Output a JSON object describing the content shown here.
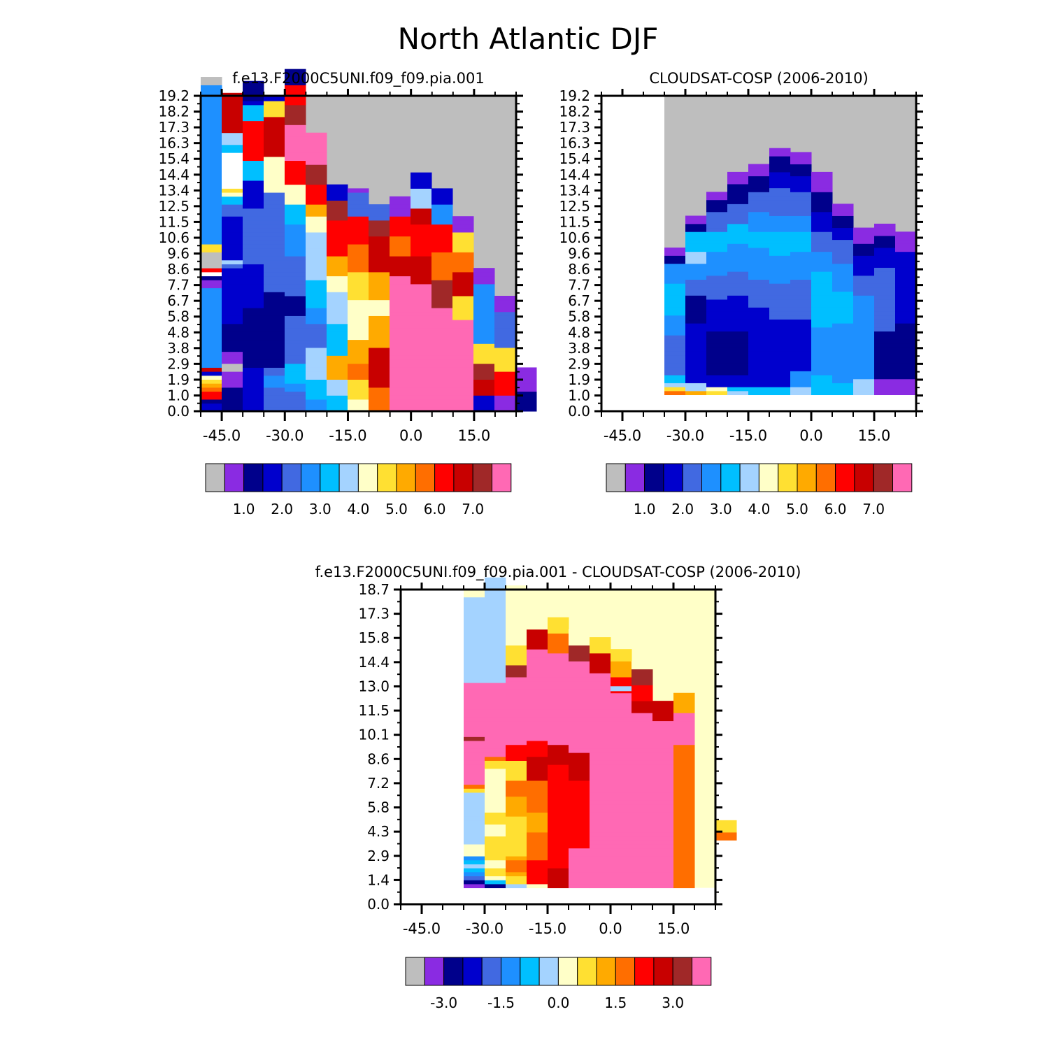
{
  "figure_title": "North Atlantic DJF",
  "colors": {
    "palette_abs": [
      "#bebebe",
      "#8a2be2",
      "#00008b",
      "#0000cd",
      "#4169e1",
      "#1e90ff",
      "#00bfff",
      "#a4d3ff",
      "#ffffc8",
      "#ffe032",
      "#ffaa00",
      "#ff6e00",
      "#ff0000",
      "#c80000",
      "#a02828",
      "#ff69b4"
    ],
    "palette_diff": [
      "#bebebe",
      "#8a2be2",
      "#00008b",
      "#0000cd",
      "#4169e1",
      "#1e90ff",
      "#00bfff",
      "#a4d3ff",
      "#ffffc8",
      "#ffe032",
      "#ffaa00",
      "#ff6e00",
      "#ff0000",
      "#c80000",
      "#a02828",
      "#ff69b4"
    ],
    "missing": "#bebebe"
  },
  "chart_data": [
    {
      "id": "model",
      "type": "heatmap",
      "title": "f.e13.F2000C5UNI.f09_f09.pia.001",
      "x_ticks": [
        "-45.0",
        "-30.0",
        "-15.0",
        "0.0",
        "15.0"
      ],
      "x_tick_values": [
        -45,
        -30,
        -15,
        0,
        15
      ],
      "xlim": [
        -50,
        25
      ],
      "y_ticks": [
        "0.0",
        "1.0",
        "1.9",
        "2.9",
        "3.8",
        "4.8",
        "5.8",
        "6.7",
        "7.7",
        "8.6",
        "9.6",
        "10.6",
        "11.5",
        "12.5",
        "13.4",
        "14.4",
        "15.4",
        "16.3",
        "17.3",
        "18.2",
        "19.2"
      ],
      "background": "#bebebe",
      "columns": [
        {
          "start": 0,
          "cells": "DDCMMLKJIDNFFFFFFFFFFFFFFFFFFFFBBCRMAAAAJJFFFFFFFFFFFFFFFFFFFFFFFFFFFFFFFFFFFFFFFFAA"
        },
        {
          "start": 0,
          "cells": "CCCCCCBBBBAABBBCCCCCCCDDDDDDDDDDDDDDEHDDDDDDDDDDDEEEGGIJRRRRRRRRRGGHHHNNNNNNNNNN"
        },
        {
          "start": 0,
          "cells": "DDDDDDDDDDDCCCCCCCCCCCCCCCDDDDDDDDDDDEEEEEEEEEEEEEEDDDDDDDGGGGGMMMMMMMMMMGGGGDCCCCC"
        },
        {
          "start": 0,
          "cells": "EEEEEEFFFEECCCCCCCCCCCCCCCCCCCEEEEEEEEEEEEEEEEEEEEEEEEEIIIIIIIIINNNNNNNNNNJJJJD"
        },
        {
          "start": 0,
          "cells": "EEEEEFFGGGGGEEEEEEEEEEEECCCCCEEEEEEEEEEFFFFFFFFGGGGGIIIIIMMMMMMPPPPPPPPPOOOOOMMMMMCCCC"
        },
        {
          "start": 0,
          "cells": "FFFGGGGGHHHHHHHHEEEEEEFFFFGGGGGGGHHHHHHHHHHHHIIIIKKKMMMMMOOOOOPPPPPPPP"
        },
        {
          "start": 0,
          "cells": "GGGGHHHHKKKKKKGGGGGGGGHHHHHHHHIIIIKKKKKMMMMMMMMMOOOOODDDD"
        },
        {
          "start": 0,
          "cells": "IIIJJJJJLLLLKKKKKKIIIIIIIIIIJJJJJJJLLLLLLLMMMMMMMEEEEEEB"
        },
        {
          "start": 0,
          "cells": "LLLLLLNNNNNNNNNNKKKKKKKKIIIIKKKKKKKNNNNNNNNNOOOOEEEE"
        },
        {
          "start": 0,
          "cells": "PPPPPPPPPPPPPPPPPPPPPPPPPPPPPPPPPPNNNNNLLLLLMMMMMBBBBB"
        },
        {
          "start": 0,
          "cells": "PPPPPPPPPPPPPPPPPPPPPPPPPPPPPPPPNNNNNNNMMMMMMMMNNNNHHHHHDDDD"
        },
        {
          "start": 0,
          "cells": "PPPPPPPPPPPPPPPPPPPPPPPPPPOOOOOOOLLLLLLLMMMMMMMFFFFFDDDD"
        },
        {
          "start": 0,
          "cells": "PPPPPPPPPPPPPPPPPPPPPPPJJJJJJNNNNNNLLLLLJJJJJBBBB"
        },
        {
          "start": 0,
          "cells": "DDDDNNNNOOOOJJJJJFFFFFFFFFFFFFFFBBBB"
        },
        {
          "start": 0,
          "cells": "BBBBMMMMMMJJJJJJEEEEEEEEEBBBB"
        },
        {
          "start": 0,
          "cells": "CCCCCBBBBBB"
        }
      ]
    },
    {
      "id": "obs",
      "type": "heatmap",
      "title": "CLOUDSAT-COSP (2006-2010)",
      "x_ticks": [
        "-45.0",
        "-30.0",
        "-15.0",
        "0.0",
        "15.0"
      ],
      "x_tick_values": [
        -45,
        -30,
        -15,
        0,
        15
      ],
      "xlim": [
        -50,
        25
      ],
      "y_ticks": [
        "0.0",
        "1.0",
        "1.9",
        "2.9",
        "3.8",
        "4.8",
        "5.8",
        "6.7",
        "7.7",
        "8.6",
        "9.6",
        "10.6",
        "11.5",
        "12.5",
        "13.4",
        "14.4",
        "15.4",
        "16.3",
        "17.3",
        "18.2",
        "19.2"
      ],
      "background": "#bebebe",
      "data_xmin": -35,
      "missing_below": 1.0,
      "columns": [
        {
          "start": 1,
          "cells": "LJHGGEEEEEEEEEEFFFFFGGGGGGGGFFFFFCCBB"
        },
        {
          "start": 1,
          "cells": "KHHDDDDDDDDDDDDDDDCCCCCCCEEEEFFFFHHHGGGGGCCBB"
        },
        {
          "start": 1,
          "cells": "JIDDDCCCCCCCCCCCDDDDDDDDEEEEEEFFFFFFGGGGGEEEEECCCBB"
        },
        {
          "start": 1,
          "cells": "HGDDDCCCCCCCCCCCDDDDDDDDDEEEEEEFFFFFFFGGGGGEEEEECCCCCBBB"
        },
        {
          "start": 1,
          "cells": "GGDDDDDDDDDDDDDDDDDDDDEEEEEEEFFFFFFFFGGGGFFFFFEEEEECCCCBBB"
        },
        {
          "start": 1,
          "cells": "GGDDDDDDDDDDDDDDDDDEEEEEEEEEFFFFFFFGGGGGGFFFFEEEEEEEDDDDCCCCBB"
        },
        {
          "start": 1,
          "cells": "HHFFFFDDDDDDDDDDDDDEEEEEEEEEEFFFFFFFGGGGGFFFFEEEEEEDDDDCCCBBB"
        },
        {
          "start": 1,
          "cells": "GGGGGFFFFFFFFFFFFGGGGGGGGGGGGGGFFFFFEEEEEDDDDDCCCCCBBBBB"
        },
        {
          "start": 1,
          "cells": "GGGFFFFFFFFFFFFFFFGGGGGGGGFFFFFFFEEEEEEDDDCCCBBB"
        },
        {
          "start": 1,
          "cells": "HHHHFFFFFFFFFFFFFFFFFFFFFEEEEEDDDDDCCCBBBB"
        },
        {
          "start": 1,
          "cells": "BBBBCCCCCCCCCCCCEEEEEEEEEEEEEEEEDDDDDCCCBBB"
        },
        {
          "start": 1,
          "cells": "BBBBCCCCCCCCCCCCCCDDDDDDDDDDDDDDDDDDBBBBB"
        }
      ]
    },
    {
      "id": "diff",
      "type": "heatmap",
      "title": "f.e13.F2000C5UNI.f09_f09.pia.001 - CLOUDSAT-COSP (2006-2010)",
      "x_ticks": [
        "-45.0",
        "-30.0",
        "-15.0",
        "0.0",
        "15.0"
      ],
      "x_tick_values": [
        -45,
        -30,
        -15,
        0,
        15
      ],
      "xlim": [
        -50,
        25
      ],
      "y_ticks": [
        "0.0",
        "1.4",
        "2.9",
        "4.3",
        "5.8",
        "7.2",
        "8.6",
        "10.1",
        "11.5",
        "13.0",
        "14.4",
        "15.8",
        "17.3",
        "18.7"
      ],
      "background": "#ffffc8",
      "data_xmin": -35,
      "missing_below": 1.0,
      "columns": [
        {
          "start": 1,
          "cells": "BCEFGHGFIIIHHHHHHHHHHHHHJLPPPPPPPPPPPOPPPPPPPPPPPPPPPPIIIIIHHHHHHHHHHHHHH"
        },
        {
          "start": 1,
          "cells": "CGIJJIIJJJJJJIIIJJJIIIIIIIIIIIJJLPPPPPPPPPPPPPPPPPPPPPPNNNNNNIIIIIHHHHHHHHHHHH"
        },
        {
          "start": 1,
          "cells": "HJJKLLLKJJJJJJJJJJKKKKKLLLLJJJJJMMMMPPPPPPPPPPPPPPPPPOOOJJJJJIIIIIIIIIIIIIII"
        },
        {
          "start": 1,
          "cells": "IMMMMMMLLLLLLLKKKKKLLLLLLLLNNNNNNMMMMPPPPPPPPPPPPPPPPPPPPPPPNNNNNIIIII"
        },
        {
          "start": 1,
          "cells": "NNNNNMMMMMMMMMMMMMMMMMMMMMMMMMMNNNNNPPPPPPPPPPPPPPPPPPPPPPPLLLLLJJJJ"
        },
        {
          "start": 1,
          "cells": "PPPPPPPPPPMMMMMMMMMMMMMMMMMNNNNNNNPPPPPPPPPPPPPPPPPPPPPPPOOOOIIII"
        },
        {
          "start": 1,
          "cells": "PPPPPPPPPPPPPPPPPPPPPPPPPPPPPPPPPPPPPPPPPPPPPPPPPPPPPPNNNNNJJJJ"
        },
        {
          "start": 1,
          "cells": "PPPPPPPPPPPPPPPPPPPPPPPPPPPPPPPPPPPPPPPPPPPPPPPPPMMMMKKKKJJJ"
        },
        {
          "start": 1,
          "cells": "PPPPPPPPPPPPPPPPPPPPPPPPPPPPPPPPPPPPPPPPPPPPNNNMMMMOOOOII"
        },
        {
          "start": 1,
          "cells": "PPPPPPPPPPPPPPPPPPPPPPPPPPPPPPPPPPPPPPPPPPNNNNN"
        },
        {
          "start": 1,
          "cells": "LLLLLLLLLLLLLLLLLLLLLLLLLLLLLLLLLLLLPPPPPPPPKKKKK"
        },
        {
          "start": 1,
          "cells": ""
        },
        {
          "start": 13,
          "cells": "LLJJJ"
        }
      ],
      "patches": [
        {
          "x0": 0,
          "x1": 2,
          "y0": 13.5,
          "y1": 18.4,
          "code": "H"
        },
        {
          "x0": 7,
          "x1": 8,
          "y0": 13.0,
          "y1": 13.3,
          "code": "H"
        }
      ]
    }
  ],
  "colorbars": [
    {
      "id": "cb1",
      "labels": [
        "1.0",
        "2.0",
        "3.0",
        "4.0",
        "5.0",
        "6.0",
        "7.0"
      ]
    },
    {
      "id": "cb2",
      "labels": [
        "1.0",
        "2.0",
        "3.0",
        "4.0",
        "5.0",
        "6.0",
        "7.0"
      ]
    },
    {
      "id": "cb3",
      "labels": [
        "-3.0",
        "-1.5",
        "0.0",
        "1.5",
        "3.0"
      ]
    }
  ]
}
